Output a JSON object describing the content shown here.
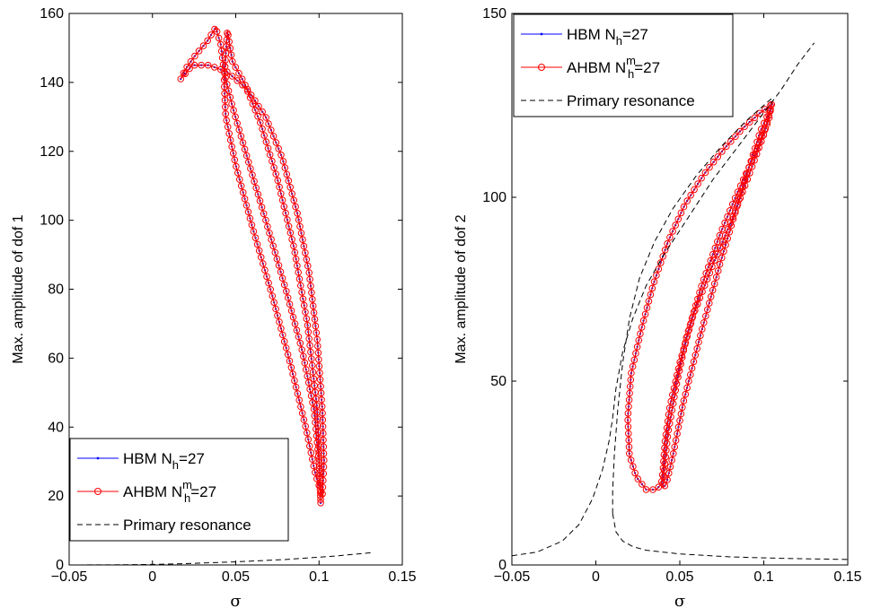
{
  "chart_data": [
    {
      "type": "line",
      "xlabel": "σ",
      "ylabel": "Max. amplitude of dof 1",
      "xlim": [
        -0.05,
        0.15
      ],
      "ylim": [
        0,
        160
      ],
      "xticks": [
        "−0.05",
        "0",
        "0.05",
        "0.1",
        "0.15"
      ],
      "yticks": [
        "0",
        "20",
        "40",
        "60",
        "80",
        "100",
        "120",
        "140",
        "160"
      ],
      "legend_position": "bottom-left",
      "legend": [
        {
          "base": "HBM N",
          "sub": "h",
          "sup": "",
          "tail": "=27"
        },
        {
          "base": "AHBM N",
          "sub": "h",
          "sup": "m",
          "tail": "=27"
        },
        {
          "base": "Primary resonance",
          "sub": "",
          "sup": "",
          "tail": ""
        }
      ],
      "series": [
        {
          "style": "blue-solid-dots",
          "x": [
            0.101,
            0.1,
            0.097,
            0.09,
            0.08,
            0.068,
            0.057,
            0.048,
            0.043,
            0.041,
            0.038,
            0.033,
            0.026,
            0.02,
            0.017,
            0.024,
            0.034,
            0.045,
            0.057,
            0.068,
            0.078,
            0.087,
            0.094,
            0.099,
            0.102,
            0.103,
            0.102,
            0.098,
            0.092,
            0.083,
            0.072,
            0.06,
            0.05,
            0.044,
            0.043,
            0.044,
            0.045,
            0.048,
            0.055,
            0.065,
            0.075,
            0.085,
            0.093,
            0.099,
            0.101
          ],
          "y": [
            18,
            30,
            45,
            62,
            80,
            100,
            118,
            133,
            143,
            151,
            156,
            152,
            148,
            144,
            141,
            145,
            145,
            143,
            138,
            130,
            118,
            102,
            85,
            65,
            45,
            30,
            20,
            26,
            40,
            58,
            78,
            98,
            116,
            130,
            140,
            148,
            155,
            146,
            140,
            128,
            112,
            92,
            70,
            45,
            18
          ]
        },
        {
          "style": "red-circles",
          "x": [
            0.101,
            0.1,
            0.097,
            0.09,
            0.08,
            0.068,
            0.057,
            0.048,
            0.043,
            0.041,
            0.038,
            0.033,
            0.026,
            0.02,
            0.017,
            0.024,
            0.034,
            0.045,
            0.057,
            0.068,
            0.078,
            0.087,
            0.094,
            0.099,
            0.102,
            0.103,
            0.102,
            0.098,
            0.092,
            0.083,
            0.072,
            0.06,
            0.05,
            0.044,
            0.043,
            0.044,
            0.045,
            0.048,
            0.055,
            0.065,
            0.075,
            0.085,
            0.093,
            0.099,
            0.101
          ],
          "y": [
            18,
            30,
            45,
            62,
            80,
            100,
            118,
            133,
            143,
            151,
            156,
            152,
            148,
            144,
            141,
            145,
            145,
            143,
            138,
            130,
            118,
            102,
            85,
            65,
            45,
            30,
            20,
            26,
            40,
            58,
            78,
            98,
            116,
            130,
            140,
            148,
            155,
            146,
            140,
            128,
            112,
            92,
            70,
            45,
            18
          ]
        },
        {
          "style": "black-dashed",
          "x": [
            -0.05,
            -0.02,
            0,
            0.02,
            0.05,
            0.08,
            0.11,
            0.132
          ],
          "y": [
            0,
            0.05,
            0.15,
            0.4,
            0.9,
            1.6,
            2.6,
            3.6
          ]
        }
      ]
    },
    {
      "type": "line",
      "xlabel": "σ",
      "ylabel": "Max. amplitude of dof 2",
      "xlim": [
        -0.05,
        0.15
      ],
      "ylim": [
        0,
        150
      ],
      "xticks": [
        "−0.05",
        "0",
        "0.05",
        "0.1",
        "0.15"
      ],
      "yticks": [
        "0",
        "50",
        "100",
        "150"
      ],
      "legend_position": "top-left",
      "legend": [
        {
          "base": "HBM N",
          "sub": "h",
          "sup": "",
          "tail": "=27"
        },
        {
          "base": "AHBM N",
          "sub": "h",
          "sup": "m",
          "tail": "=27"
        },
        {
          "base": "Primary resonance",
          "sub": "",
          "sup": "",
          "tail": ""
        }
      ],
      "series": [
        {
          "style": "blue-solid-dots",
          "x": [
            0.104,
            0.1,
            0.092,
            0.082,
            0.07,
            0.058,
            0.05,
            0.044,
            0.041,
            0.04,
            0.039,
            0.036,
            0.03,
            0.024,
            0.02,
            0.019,
            0.021,
            0.027,
            0.034,
            0.043,
            0.053,
            0.064,
            0.076,
            0.088,
            0.098,
            0.104,
            0.105,
            0.103,
            0.095,
            0.085,
            0.074,
            0.063,
            0.054,
            0.048,
            0.043,
            0.041,
            0.04,
            0.04,
            0.042,
            0.046,
            0.052,
            0.062,
            0.074,
            0.087,
            0.098,
            0.104
          ],
          "y": [
            124,
            117,
            107,
            95,
            82,
            68,
            55,
            43,
            33,
            26,
            22,
            20.5,
            20.5,
            24,
            30,
            40,
            52,
            64,
            76,
            88,
            98,
            106,
            113,
            119,
            123,
            125,
            126,
            121,
            112,
            102,
            90,
            76,
            62,
            49,
            36,
            27,
            22,
            21,
            22,
            30,
            44,
            62,
            82,
            102,
            118,
            124
          ]
        },
        {
          "style": "red-circles",
          "x": [
            0.104,
            0.1,
            0.092,
            0.082,
            0.07,
            0.058,
            0.05,
            0.044,
            0.041,
            0.04,
            0.039,
            0.036,
            0.03,
            0.024,
            0.02,
            0.019,
            0.021,
            0.027,
            0.034,
            0.043,
            0.053,
            0.064,
            0.076,
            0.088,
            0.098,
            0.104,
            0.105,
            0.103,
            0.095,
            0.085,
            0.074,
            0.063,
            0.054,
            0.048,
            0.043,
            0.041,
            0.04,
            0.04,
            0.042,
            0.046,
            0.052,
            0.062,
            0.074,
            0.087,
            0.098,
            0.104
          ],
          "y": [
            124,
            117,
            107,
            95,
            82,
            68,
            55,
            43,
            33,
            26,
            22,
            20.5,
            20.5,
            24,
            30,
            40,
            52,
            64,
            76,
            88,
            98,
            106,
            113,
            119,
            123,
            125,
            126,
            121,
            112,
            102,
            90,
            76,
            62,
            49,
            36,
            27,
            22,
            21,
            22,
            30,
            44,
            62,
            82,
            102,
            118,
            124
          ]
        },
        {
          "style": "black-dashed",
          "x": [
            -0.05,
            -0.035,
            -0.02,
            -0.01,
            -0.002,
            0.004,
            0.008,
            0.01,
            0.012,
            0.016,
            0.022,
            0.03,
            0.04,
            0.05,
            0.06,
            0.07,
            0.08,
            0.09,
            0.1,
            0.11,
            0.12,
            0.13
          ],
          "y": [
            2.5,
            3.5,
            6.5,
            11,
            18,
            26,
            34,
            40,
            48,
            58,
            67,
            76,
            84,
            91,
            98,
            105,
            111,
            117,
            123,
            129,
            136,
            142
          ]
        },
        {
          "style": "black-dashed",
          "x": [
            0.01,
            0.01,
            0.011,
            0.013,
            0.016,
            0.02,
            0.026,
            0.035,
            0.046,
            0.06,
            0.075,
            0.09,
            0.105
          ],
          "y": [
            14,
            20,
            30,
            42,
            55,
            67,
            78,
            88,
            97,
            106,
            114,
            121,
            127
          ]
        },
        {
          "style": "black-dashed",
          "x": [
            0.01,
            0.012,
            0.016,
            0.022,
            0.03,
            0.05,
            0.08,
            0.11,
            0.15
          ],
          "y": [
            14,
            9,
            6.5,
            5,
            4,
            3,
            2.2,
            1.8,
            1.5
          ]
        }
      ]
    }
  ]
}
